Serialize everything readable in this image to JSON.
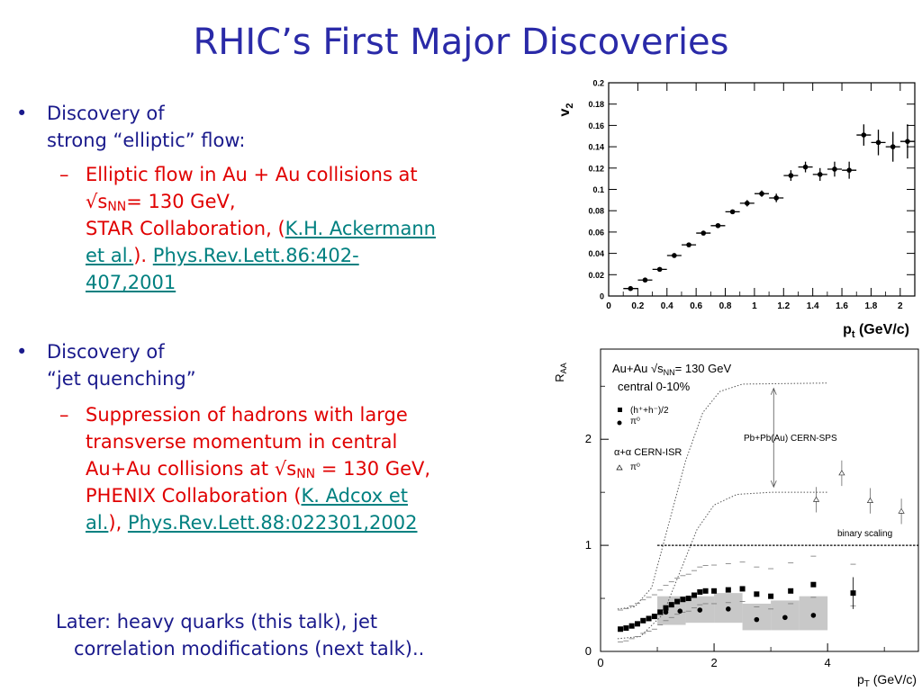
{
  "slide": {
    "title": "RHIC’s First Major Discoveries",
    "bullet1": {
      "marker": "•",
      "line1": "Discovery of",
      "line2": "strong “elliptic” flow:",
      "dash": "–",
      "sub_line1": "Elliptic flow in Au + Au collisions at",
      "sub_sqrt": "√s",
      "sub_nn": "NN",
      "sub_energy": "= 130 GeV,",
      "sub_collab": "STAR Collaboration, (",
      "sub_link1": "K.H. Ackermann",
      "sub_link1b": "et al.",
      "sub_close": ").",
      "sub_link2a": "Phys.Rev.Lett.86:402-",
      "sub_link2b": "407,2001"
    },
    "bullet2": {
      "marker": "•",
      "line1": "Discovery of",
      "line2": "“jet quenching”",
      "dash": "–",
      "sub_line1": "Suppression of hadrons with large",
      "sub_line2": "transverse momentum in central",
      "sub_line3_pre": "Au+Au collisions at ",
      "sub_sqrt": "√s",
      "sub_nn": "NN",
      "sub_line3_post": " = 130 GeV,",
      "sub_collab": "PHENIX Collaboration (",
      "sub_link1a": "K. Adcox et",
      "sub_link1b": "al.",
      "sub_mid": "), ",
      "sub_link2": "Phys.Rev.Lett.88:022301,2002"
    },
    "later": {
      "line1": "Later: heavy quarks (this talk), jet",
      "line2": "correlation modifications (next talk).."
    }
  },
  "chart_data": [
    {
      "type": "scatter",
      "title": "",
      "xlabel_main": "p",
      "xlabel_sub": "t",
      "xlabel_unit": " (GeV/c)",
      "ylabel_main": "v",
      "ylabel_sub": "2",
      "xlim": [
        0,
        2.1
      ],
      "ylim": [
        0,
        0.2
      ],
      "xticks": [
        "0",
        "0.2",
        "0.4",
        "0.6",
        "0.8",
        "1",
        "1.2",
        "1.4",
        "1.6",
        "1.8",
        "2"
      ],
      "yticks": [
        "0",
        "0.02",
        "0.04",
        "0.06",
        "0.08",
        "0.1",
        "0.12",
        "0.14",
        "0.16",
        "0.18",
        "0.2"
      ],
      "x": [
        0.15,
        0.25,
        0.35,
        0.45,
        0.55,
        0.65,
        0.75,
        0.85,
        0.95,
        1.05,
        1.15,
        1.25,
        1.35,
        1.45,
        1.55,
        1.65,
        1.75,
        1.85,
        1.95,
        2.05
      ],
      "y": [
        0.007,
        0.015,
        0.025,
        0.038,
        0.048,
        0.059,
        0.066,
        0.079,
        0.087,
        0.096,
        0.092,
        0.113,
        0.121,
        0.114,
        0.119,
        0.118,
        0.151,
        0.144,
        0.14,
        0.145
      ],
      "yerr": [
        0.001,
        0.001,
        0.001,
        0.001,
        0.001,
        0.002,
        0.002,
        0.002,
        0.003,
        0.003,
        0.004,
        0.005,
        0.005,
        0.006,
        0.007,
        0.008,
        0.01,
        0.012,
        0.014,
        0.016
      ]
    },
    {
      "type": "scatter",
      "title": "",
      "xlabel_main": "p",
      "xlabel_sub": "T",
      "xlabel_unit": " (GeV/c)",
      "ylabel_main": "R",
      "ylabel_sub": "AA",
      "xlim": [
        0,
        5.6
      ],
      "ylim": [
        0,
        2.85
      ],
      "xticks": [
        "0",
        "2",
        "4"
      ],
      "yticks": [
        "0",
        "1",
        "2"
      ],
      "legend": {
        "line1_pre": "Au+Au √s",
        "line1_sub": "NN",
        "line1_post": "= 130 GeV",
        "line2": "central 0-10%",
        "entry1": "(h⁺+h⁻)/2",
        "entry2": "π⁰",
        "group2": "α+α CERN-ISR",
        "entry3": "π⁰"
      },
      "annotations": {
        "sps": "Pb+Pb(Au) CERN-SPS",
        "binary": "binary scaling"
      },
      "series": [
        {
          "name": "(h⁺+h⁻)/2",
          "x": [
            0.35,
            0.45,
            0.55,
            0.65,
            0.75,
            0.85,
            0.95,
            1.05,
            1.15,
            1.25,
            1.35,
            1.45,
            1.55,
            1.65,
            1.75,
            1.85,
            2.0,
            2.25,
            2.5,
            2.75,
            3.0,
            3.35,
            3.75,
            4.45
          ],
          "y": [
            0.21,
            0.22,
            0.24,
            0.26,
            0.29,
            0.31,
            0.33,
            0.37,
            0.41,
            0.44,
            0.47,
            0.49,
            0.5,
            0.53,
            0.56,
            0.57,
            0.57,
            0.58,
            0.59,
            0.54,
            0.52,
            0.57,
            0.63,
            0.55
          ]
        },
        {
          "name": "π⁰",
          "x": [
            1.15,
            1.4,
            1.75,
            2.25,
            2.75,
            3.25,
            3.75
          ],
          "y": [
            0.37,
            0.38,
            0.39,
            0.4,
            0.3,
            0.32,
            0.34
          ]
        },
        {
          "name": "α+α CERN-ISR π⁰",
          "x": [
            3.8,
            4.25,
            4.75,
            5.3
          ],
          "y": [
            1.43,
            1.68,
            1.42,
            1.32
          ]
        }
      ]
    }
  ]
}
